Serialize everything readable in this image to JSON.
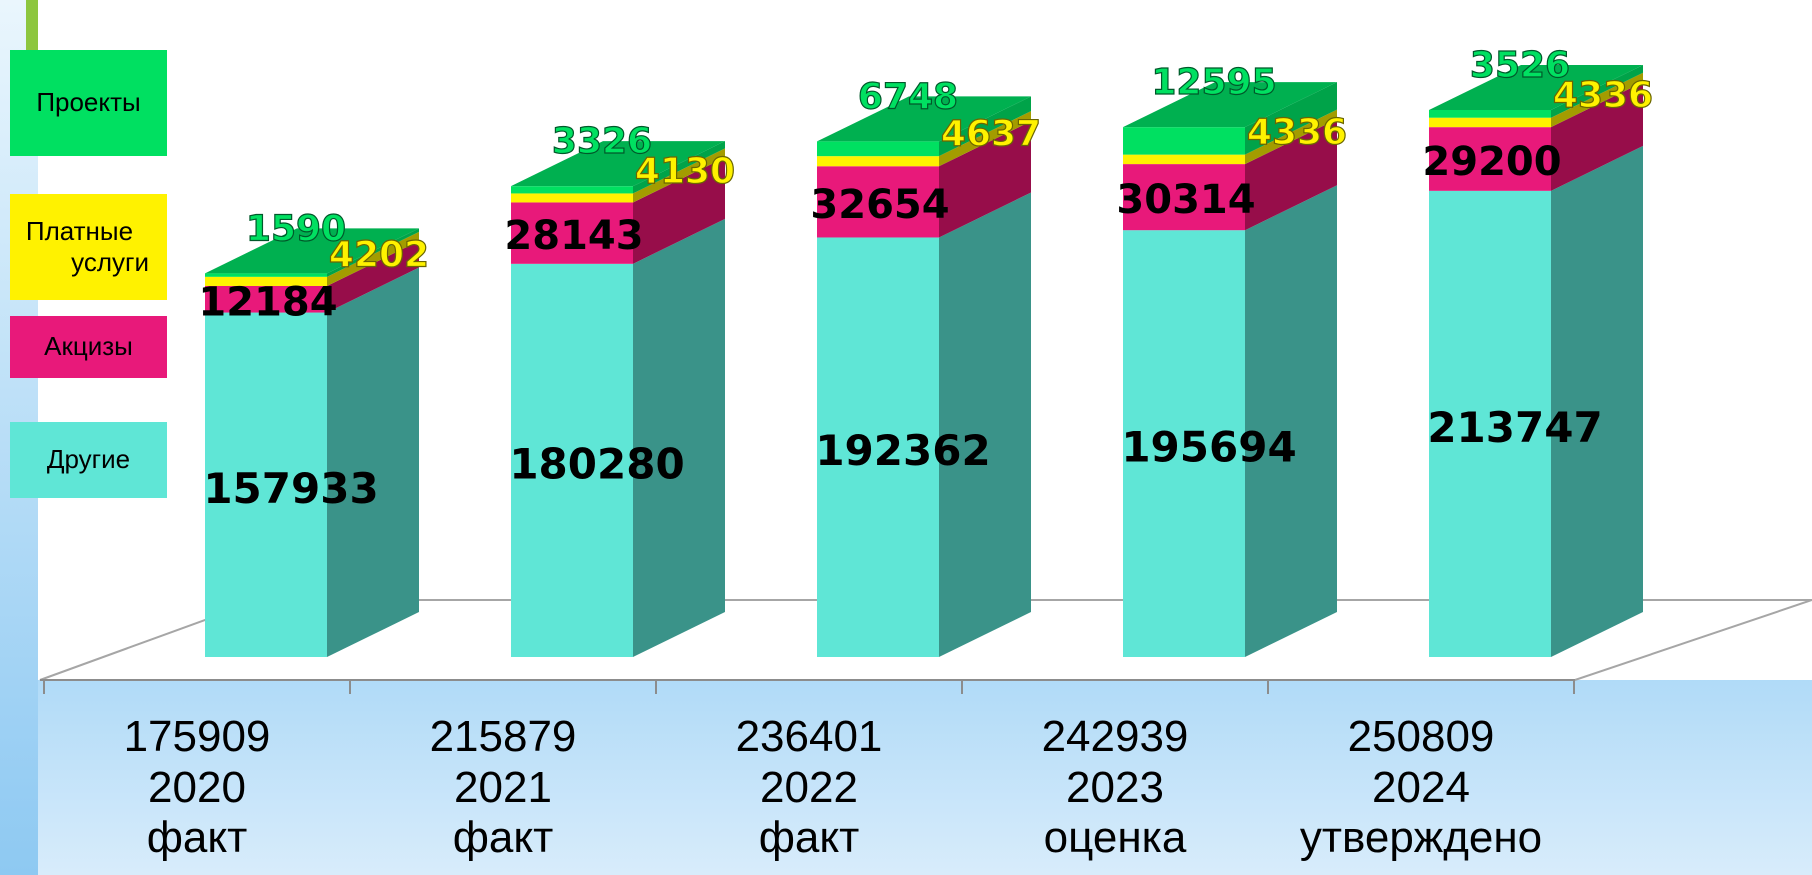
{
  "chart_data": {
    "type": "bar",
    "stacked": true,
    "categories": [
      {
        "total": "175909",
        "year": "2020",
        "status": "факт"
      },
      {
        "total": "215879",
        "year": "2021",
        "status": "факт"
      },
      {
        "total": "236401",
        "year": "2022",
        "status": "факт"
      },
      {
        "total": "242939",
        "year": "2023",
        "status": "оценка"
      },
      {
        "total": "250809",
        "year": "2024",
        "status": "утверждено"
      }
    ],
    "series": [
      {
        "name": "Другие",
        "color": "#5fe6d6",
        "side_color": "#3a9389",
        "values": [
          157933,
          180280,
          192362,
          195694,
          213747
        ]
      },
      {
        "name": "Акцизы",
        "color": "#e8197a",
        "side_color": "#970d4a",
        "values": [
          12184,
          28143,
          32654,
          30314,
          29200
        ]
      },
      {
        "name": "Платные услуги",
        "color": "#fff200",
        "side_color": "#a39c00",
        "values": [
          4202,
          4130,
          4637,
          4336,
          4336
        ]
      },
      {
        "name": "Проекты",
        "color": "#00e061",
        "side_color": "#00a349",
        "values": [
          1590,
          3326,
          6748,
          12595,
          3526
        ]
      }
    ],
    "legend": {
      "position": "left",
      "items": [
        {
          "series": "Проекты",
          "lines": [
            "Проекты"
          ]
        },
        {
          "series": "Платные услуги",
          "lines": [
            "Платные",
            "услуги"
          ]
        },
        {
          "series": "Акцизы",
          "lines": [
            "Акцизы"
          ]
        },
        {
          "series": "Другие",
          "lines": [
            "Другие"
          ]
        }
      ]
    },
    "ylim": [
      0,
      260000
    ],
    "grid": false,
    "title": "",
    "xlabel": "",
    "ylabel": ""
  }
}
